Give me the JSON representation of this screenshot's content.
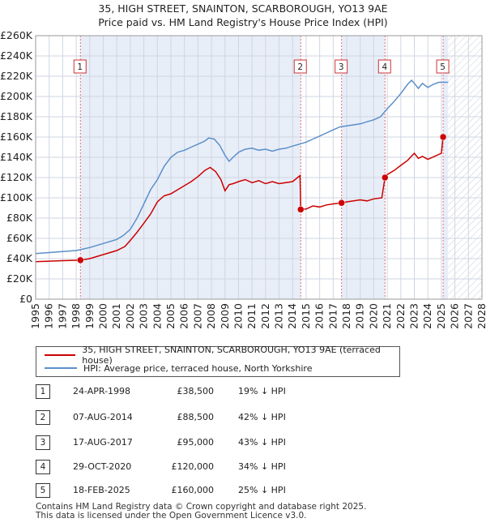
{
  "title_line1": "35, HIGH STREET, SNAINTON, SCARBOROUGH, YO13 9AE",
  "title_line2": "Price paid vs. HM Land Registry's House Price Index (HPI)",
  "colors": {
    "property": "#cc0000",
    "hpi": "#5b8fc9",
    "shade": "#e8eef8",
    "marker_line": "#e07070",
    "grid": "#cfd6e2"
  },
  "legend": {
    "property_label": "35, HIGH STREET, SNAINTON, SCARBOROUGH, YO13 9AE (terraced house)",
    "hpi_label": "HPI: Average price, terraced house, North Yorkshire"
  },
  "chart_data": {
    "type": "line",
    "title": "Price paid vs. HM Land Registry's House Price Index (HPI)",
    "xlim": [
      1995,
      2028
    ],
    "ylim": [
      0,
      260000
    ],
    "x_ticks": [
      1995,
      1996,
      1997,
      1998,
      1999,
      2000,
      2001,
      2002,
      2003,
      2004,
      2005,
      2006,
      2007,
      2008,
      2009,
      2010,
      2011,
      2012,
      2013,
      2014,
      2015,
      2016,
      2017,
      2018,
      2019,
      2020,
      2021,
      2022,
      2023,
      2024,
      2025,
      2026,
      2027,
      2028
    ],
    "y_ticks": [
      0,
      20000,
      40000,
      60000,
      80000,
      100000,
      120000,
      140000,
      160000,
      180000,
      200000,
      220000,
      240000,
      260000
    ],
    "y_tick_labels": [
      "£0",
      "£20K",
      "£40K",
      "£60K",
      "£80K",
      "£100K",
      "£120K",
      "£140K",
      "£160K",
      "£180K",
      "£200K",
      "£220K",
      "£240K",
      "£260K"
    ],
    "hatched_from": 2025.5,
    "series": [
      {
        "name": "35, HIGH STREET, SNAINTON, SCARBOROUGH, YO13 9AE (terraced house)",
        "x": [
          1995.0,
          1996.0,
          1997.0,
          1997.8,
          1998.3,
          1999.0,
          2000.0,
          2001.0,
          2001.6,
          2002.0,
          2002.5,
          2003.0,
          2003.5,
          2004.0,
          2004.5,
          2005.0,
          2005.5,
          2006.0,
          2006.5,
          2007.0,
          2007.5,
          2007.9,
          2008.3,
          2008.7,
          2009.0,
          2009.3,
          2009.6,
          2010.0,
          2010.5,
          2011.0,
          2011.5,
          2012.0,
          2012.5,
          2013.0,
          2013.5,
          2014.0,
          2014.55,
          2014.6,
          2015.0,
          2015.5,
          2016.0,
          2016.5,
          2017.0,
          2017.62,
          2018.0,
          2018.5,
          2019.0,
          2019.5,
          2020.0,
          2020.6,
          2020.83,
          2021.0,
          2021.5,
          2022.0,
          2022.5,
          2023.0,
          2023.3,
          2023.6,
          2024.0,
          2024.5,
          2025.0,
          2025.13
        ],
        "values": [
          37000,
          37500,
          38000,
          38300,
          38500,
          40000,
          44000,
          48000,
          52000,
          58000,
          66000,
          75000,
          84000,
          96000,
          102000,
          104000,
          108000,
          112000,
          116000,
          121000,
          127000,
          130000,
          126000,
          118000,
          107000,
          113000,
          114000,
          116000,
          118000,
          115000,
          117000,
          114000,
          116000,
          114000,
          115000,
          116000,
          122000,
          88500,
          89000,
          92000,
          91000,
          93000,
          94000,
          95000,
          96000,
          97000,
          98000,
          97000,
          99000,
          100000,
          120000,
          123000,
          127000,
          132000,
          137000,
          144000,
          139000,
          141000,
          138000,
          141000,
          144000,
          160000
        ]
      },
      {
        "name": "HPI: Average price, terraced house, North Yorkshire",
        "x": [
          1995.0,
          1996.0,
          1997.0,
          1998.0,
          1999.0,
          2000.0,
          2001.0,
          2001.5,
          2002.0,
          2002.5,
          2003.0,
          2003.5,
          2004.0,
          2004.5,
          2005.0,
          2005.5,
          2006.0,
          2006.5,
          2007.0,
          2007.5,
          2007.8,
          2008.2,
          2008.6,
          2009.0,
          2009.3,
          2009.6,
          2010.0,
          2010.5,
          2011.0,
          2011.5,
          2012.0,
          2012.5,
          2013.0,
          2013.5,
          2014.0,
          2014.5,
          2015.0,
          2015.5,
          2016.0,
          2016.5,
          2017.0,
          2017.5,
          2018.0,
          2018.5,
          2019.0,
          2019.5,
          2020.0,
          2020.5,
          2021.0,
          2021.5,
          2022.0,
          2022.5,
          2022.8,
          2023.0,
          2023.3,
          2023.6,
          2024.0,
          2024.4,
          2024.8,
          2025.0,
          2025.5
        ],
        "values": [
          45000,
          46000,
          47000,
          48000,
          51000,
          55000,
          59000,
          63000,
          69000,
          80000,
          94000,
          108000,
          118000,
          131000,
          140000,
          145000,
          147000,
          150000,
          153000,
          156000,
          159000,
          158000,
          152000,
          142000,
          136000,
          140000,
          145000,
          148000,
          149000,
          147000,
          148000,
          146000,
          148000,
          149000,
          151000,
          153000,
          155000,
          158000,
          161000,
          164000,
          167000,
          170000,
          171000,
          172000,
          173000,
          175000,
          177000,
          180000,
          188000,
          195000,
          203000,
          212000,
          216000,
          213000,
          208000,
          213000,
          209000,
          212000,
          214000,
          214000,
          214000
        ]
      }
    ],
    "sales": [
      {
        "label": "1",
        "x": 1998.31,
        "value": 38500
      },
      {
        "label": "2",
        "x": 2014.6,
        "value": 88500
      },
      {
        "label": "3",
        "x": 2017.62,
        "value": 95000
      },
      {
        "label": "4",
        "x": 2020.83,
        "value": 120000
      },
      {
        "label": "5",
        "x": 2025.13,
        "value": 160000
      }
    ]
  },
  "table": [
    {
      "num": "1",
      "date": "24-APR-1998",
      "price": "£38,500",
      "hpi": "19% ↓ HPI"
    },
    {
      "num": "2",
      "date": "07-AUG-2014",
      "price": "£88,500",
      "hpi": "42% ↓ HPI"
    },
    {
      "num": "3",
      "date": "17-AUG-2017",
      "price": "£95,000",
      "hpi": "43% ↓ HPI"
    },
    {
      "num": "4",
      "date": "29-OCT-2020",
      "price": "£120,000",
      "hpi": "34% ↓ HPI"
    },
    {
      "num": "5",
      "date": "18-FEB-2025",
      "price": "£160,000",
      "hpi": "25% ↓ HPI"
    }
  ],
  "footer_line1": "Contains HM Land Registry data © Crown copyright and database right 2025.",
  "footer_line2": "This data is licensed under the Open Government Licence v3.0."
}
